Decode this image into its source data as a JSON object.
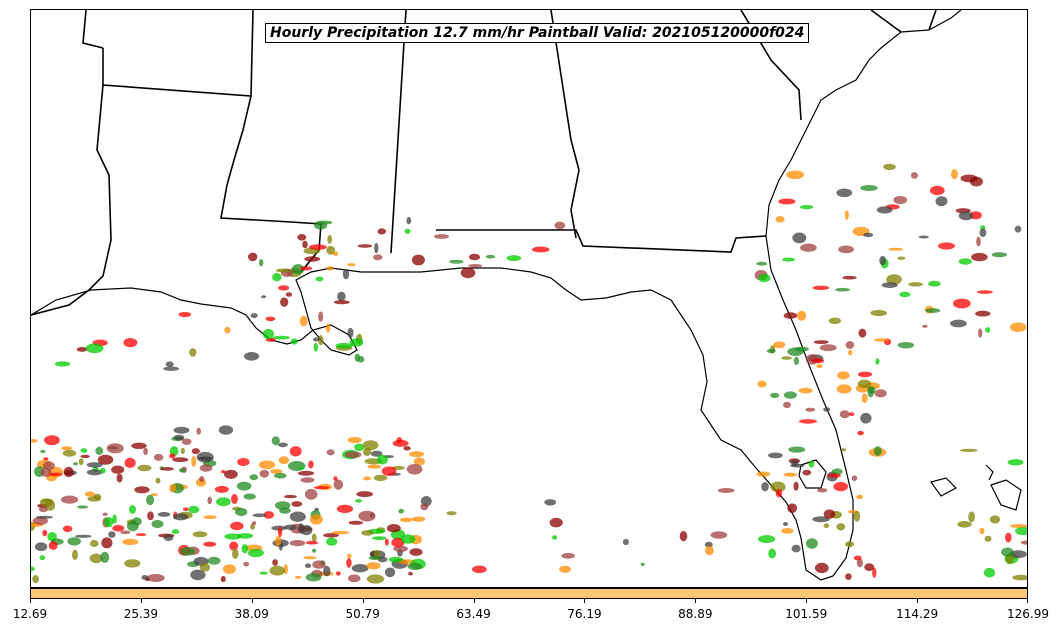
{
  "title": "Hourly Precipitation 12.7 mm/hr Paintball Valid: 202105120000f024",
  "colorbar": {
    "fill_color": "#FFC875",
    "tick_labels": [
      "12.69",
      "25.39",
      "38.09",
      "50.79",
      "63.49",
      "76.19",
      "88.89",
      "101.59",
      "114.29",
      "126.99"
    ]
  },
  "paintball_colors": [
    "#FF0000",
    "#FF8C00",
    "#8B0000",
    "#808000",
    "#228B22",
    "#00CC00",
    "#A04040",
    "#404040"
  ]
}
